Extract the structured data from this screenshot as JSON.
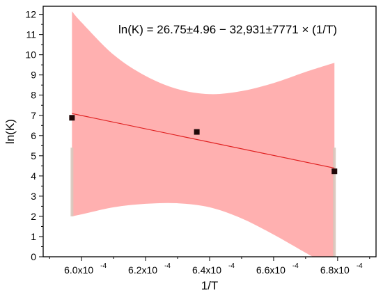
{
  "chart_data": {
    "type": "scatter",
    "title": "",
    "equation": "ln(K) = 26.75±4.96 − 32,931±7771 × (1/T)",
    "xlabel": "1/T",
    "ylabel": "ln(K)",
    "xlim": [
      0.000588,
      0.000692
    ],
    "ylim": [
      0,
      12.4
    ],
    "xticks": [
      {
        "value": 0.0006,
        "label": "6.0x10",
        "exp": "-4"
      },
      {
        "value": 0.00062,
        "label": "6.2x10",
        "exp": "-4"
      },
      {
        "value": 0.00064,
        "label": "6.4x10",
        "exp": "-4"
      },
      {
        "value": 0.00066,
        "label": "6.6x10",
        "exp": "-4"
      },
      {
        "value": 0.00068,
        "label": "6.8x10",
        "exp": "-4"
      }
    ],
    "yticks": [
      0,
      1,
      2,
      3,
      4,
      5,
      6,
      7,
      8,
      9,
      10,
      11,
      12
    ],
    "grid": false,
    "points": [
      {
        "x": 0.000597,
        "y": 6.88
      },
      {
        "x": 0.000636,
        "y": 6.18
      },
      {
        "x": 0.000679,
        "y": 4.23
      }
    ],
    "fit": {
      "intercept": 26.75,
      "slope": -32931
    },
    "fit_range": [
      0.000597,
      0.000679
    ],
    "band_upper": [
      {
        "x": 0.000597,
        "y": 12.15
      },
      {
        "x": 0.0006,
        "y": 11.6
      },
      {
        "x": 0.00061,
        "y": 10.0
      },
      {
        "x": 0.00062,
        "y": 8.95
      },
      {
        "x": 0.00063,
        "y": 8.3
      },
      {
        "x": 0.00064,
        "y": 8.05
      },
      {
        "x": 0.00065,
        "y": 8.2
      },
      {
        "x": 0.00066,
        "y": 8.6
      },
      {
        "x": 0.00067,
        "y": 9.15
      },
      {
        "x": 0.000679,
        "y": 9.6
      }
    ],
    "band_lower": [
      {
        "x": 0.000597,
        "y": 2.0
      },
      {
        "x": 0.0006,
        "y": 2.1
      },
      {
        "x": 0.00061,
        "y": 2.45
      },
      {
        "x": 0.00062,
        "y": 2.62
      },
      {
        "x": 0.00063,
        "y": 2.65
      },
      {
        "x": 0.00064,
        "y": 2.45
      },
      {
        "x": 0.00065,
        "y": 1.9
      },
      {
        "x": 0.00066,
        "y": 1.1
      },
      {
        "x": 0.00067,
        "y": 0.2
      },
      {
        "x": 0.000679,
        "y": -0.6
      }
    ],
    "colors": {
      "band": "#ffb0b0",
      "band_edge": "#d8c8bc",
      "fit_line": "#e02020",
      "point": "#200808",
      "axis": "#000000"
    }
  }
}
